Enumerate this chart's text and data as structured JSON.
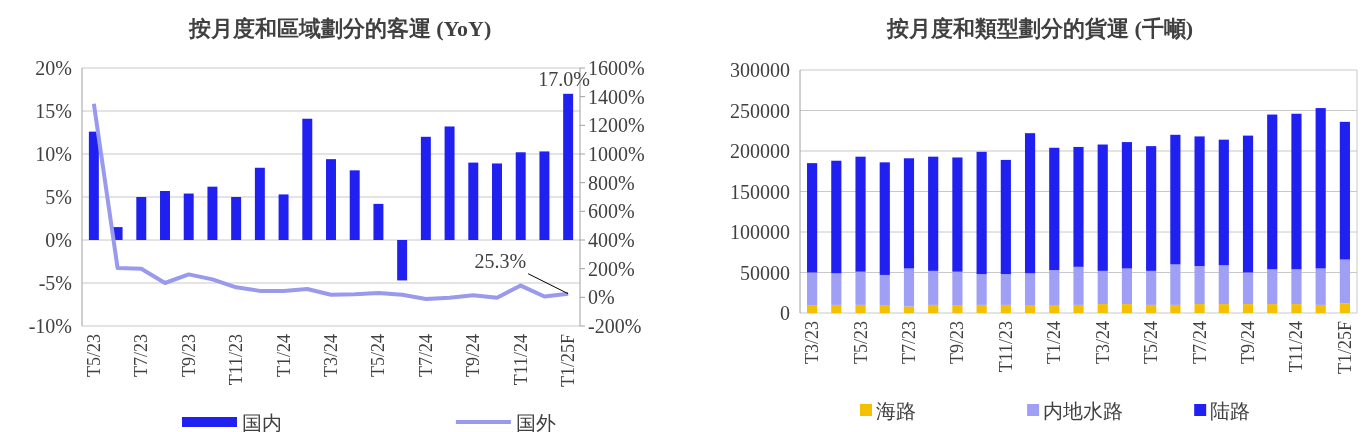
{
  "chart_data": [
    {
      "type": "bar",
      "title": "按月度和區域劃分的客運 (YoY)",
      "categories": [
        "T5/23",
        null,
        "T7/23",
        null,
        "T9/23",
        null,
        "T11/23",
        null,
        "T1/24",
        null,
        "T3/24",
        null,
        "T5/24",
        null,
        "T7/24",
        null,
        "T9/24",
        null,
        "T11/24",
        null,
        "T1/25F"
      ],
      "series": [
        {
          "name": "国内",
          "type": "bar",
          "color": "#2020f0",
          "values": [
            12.6,
            1.5,
            5.0,
            5.7,
            5.4,
            6.2,
            5.0,
            8.4,
            5.3,
            14.1,
            9.4,
            8.1,
            4.2,
            -4.7,
            12.0,
            13.2,
            9.0,
            8.9,
            10.2,
            10.3,
            17.0
          ],
          "value_labels": [
            null,
            null,
            null,
            null,
            null,
            null,
            null,
            null,
            null,
            null,
            null,
            null,
            null,
            null,
            null,
            null,
            null,
            null,
            null,
            null,
            "17.0%"
          ]
        },
        {
          "name": "国外",
          "type": "line",
          "axis": "y2",
          "color": "#9999ee",
          "values": [
            1350,
            205,
            200,
            100,
            160,
            125,
            70,
            45,
            45,
            58,
            18,
            21,
            30,
            18,
            -12,
            -3,
            15,
            -3,
            82,
            6,
            25.3
          ],
          "value_labels": [
            null,
            null,
            null,
            null,
            null,
            null,
            null,
            null,
            null,
            null,
            null,
            null,
            null,
            null,
            null,
            null,
            null,
            null,
            null,
            null,
            "25.3%"
          ]
        }
      ],
      "ylim": [
        -10,
        20
      ],
      "yticks": [
        {
          "value": -10,
          "label": "-10%"
        },
        {
          "value": -5,
          "label": "-5%"
        },
        {
          "value": 0,
          "label": "0%"
        },
        {
          "value": 5,
          "label": "5%"
        },
        {
          "value": 10,
          "label": "10%"
        },
        {
          "value": 15,
          "label": "15%"
        },
        {
          "value": 20,
          "label": "20%"
        }
      ],
      "y2lim": [
        -200,
        1600
      ],
      "y2ticks": [
        {
          "value": -200,
          "label": "-200%"
        },
        {
          "value": 0,
          "label": "0%"
        },
        {
          "value": 200,
          "label": "200%"
        },
        {
          "value": 400,
          "label": "400%"
        },
        {
          "value": 600,
          "label": "600%"
        },
        {
          "value": 800,
          "label": "800%"
        },
        {
          "value": 1000,
          "label": "1000%"
        },
        {
          "value": 1200,
          "label": "1200%"
        },
        {
          "value": 1400,
          "label": "1400%"
        },
        {
          "value": 1600,
          "label": "1600%"
        }
      ],
      "grid": "y",
      "legend": "bottom",
      "marker": "none"
    },
    {
      "type": "bar",
      "title": "按月度和類型劃分的貨運 (千噸)",
      "stacked": true,
      "categories": [
        "T3/23",
        null,
        "T5/23",
        null,
        "T7/23",
        null,
        "T9/23",
        null,
        "T11/23",
        null,
        "T1/24",
        null,
        "T3/24",
        null,
        "T5/24",
        null,
        "T7/24",
        null,
        "T9/24",
        null,
        "T11/24",
        null,
        "T1/25F"
      ],
      "series": [
        {
          "name": "海路",
          "color": "#f5c000",
          "values": [
            9000,
            10000,
            10000,
            9000,
            8000,
            10000,
            9000,
            10000,
            10000,
            9000,
            9000,
            10000,
            11000,
            11000,
            10000,
            10000,
            11000,
            11000,
            11000,
            11000,
            11000,
            10000,
            12000
          ]
        },
        {
          "name": "内地水路",
          "color": "#9f9ff5",
          "values": [
            41000,
            39000,
            41000,
            38000,
            47000,
            42000,
            42000,
            38000,
            38000,
            40000,
            44000,
            47000,
            41000,
            44000,
            42000,
            50000,
            47000,
            48000,
            39000,
            43000,
            43000,
            45000,
            54000
          ]
        },
        {
          "name": "陆路",
          "color": "#2020f0",
          "values": [
            135000,
            139000,
            142000,
            139000,
            136000,
            141000,
            141000,
            151000,
            141000,
            173000,
            151000,
            148000,
            156000,
            156000,
            154000,
            160000,
            160000,
            155000,
            169000,
            191000,
            192000,
            198000,
            170000
          ]
        }
      ],
      "ylim": [
        0,
        300000
      ],
      "yticks": [
        0,
        50000,
        100000,
        150000,
        200000,
        250000,
        300000
      ],
      "grid": "y",
      "legend": "bottom"
    }
  ]
}
